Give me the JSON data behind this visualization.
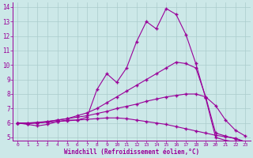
{
  "xlabel": "Windchill (Refroidissement éolien,°C)",
  "bg_color": "#cce8e8",
  "grid_color": "#aacccc",
  "line_color": "#990099",
  "xlim": [
    -0.5,
    23.5
  ],
  "ylim": [
    4.8,
    14.3
  ],
  "xticks": [
    0,
    1,
    2,
    3,
    4,
    5,
    6,
    7,
    8,
    9,
    10,
    11,
    12,
    13,
    14,
    15,
    16,
    17,
    18,
    19,
    20,
    21,
    22,
    23
  ],
  "yticks": [
    5,
    6,
    7,
    8,
    9,
    10,
    11,
    12,
    13,
    14
  ],
  "line1_y": [
    6.0,
    5.9,
    5.8,
    5.9,
    6.1,
    6.2,
    6.2,
    6.4,
    8.3,
    9.4,
    8.8,
    9.8,
    11.6,
    13.0,
    12.5,
    13.9,
    13.5,
    12.1,
    10.1,
    7.7,
    5.0,
    4.8,
    4.7,
    4.6
  ],
  "line2_y": [
    6.0,
    5.95,
    6.0,
    6.1,
    6.2,
    6.3,
    6.5,
    6.7,
    7.0,
    7.4,
    7.8,
    8.2,
    8.6,
    9.0,
    9.4,
    9.8,
    10.2,
    10.1,
    9.8,
    7.8,
    5.3,
    5.1,
    4.9,
    4.7
  ],
  "line3_y": [
    6.0,
    6.0,
    6.05,
    6.1,
    6.2,
    6.3,
    6.4,
    6.5,
    6.65,
    6.8,
    7.0,
    7.15,
    7.3,
    7.5,
    7.65,
    7.8,
    7.9,
    8.0,
    8.0,
    7.8,
    7.2,
    6.2,
    5.5,
    5.1
  ],
  "line4_y": [
    6.0,
    6.0,
    6.0,
    6.05,
    6.1,
    6.15,
    6.2,
    6.25,
    6.3,
    6.35,
    6.35,
    6.3,
    6.2,
    6.1,
    6.0,
    5.9,
    5.75,
    5.6,
    5.45,
    5.3,
    5.15,
    5.05,
    4.95,
    4.7
  ]
}
